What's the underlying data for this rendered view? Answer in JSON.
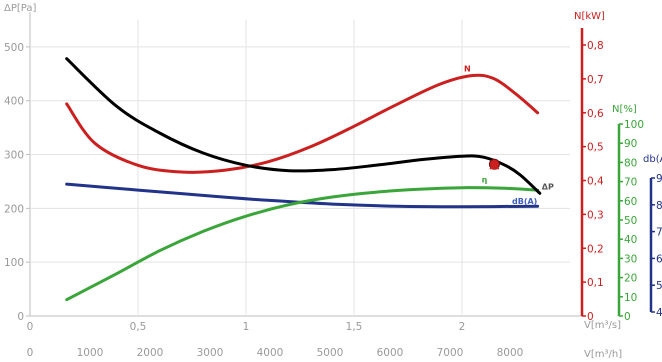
{
  "chart_data": {
    "type": "line",
    "x_axis": {
      "label": "V[m³/s]",
      "ticks": [
        {
          "value": 0,
          "label": "0"
        },
        {
          "value": 0.5,
          "label": "0,5"
        },
        {
          "value": 1,
          "label": "1"
        },
        {
          "value": 1.5,
          "label": "1,5"
        },
        {
          "value": 2,
          "label": "2"
        }
      ],
      "range": [
        0,
        2.5
      ]
    },
    "x2_axis": {
      "label": "V[m³/h]",
      "ticks": [
        "0",
        "1000",
        "2000",
        "3000",
        "4000",
        "5000",
        "6000",
        "7000",
        "8000"
      ],
      "step": 1000
    },
    "y_axes": {
      "pressure": {
        "label": "ΔP[Pa]",
        "ticks": [
          "0",
          "100",
          "200",
          "300",
          "400",
          "500"
        ],
        "range": [
          0,
          550
        ],
        "color": "#9a9a9a"
      },
      "power": {
        "label": "N[kW]",
        "ticks": [
          "0",
          "0,1",
          "0,2",
          "0,3",
          "0,4",
          "0,5",
          "0,6",
          "0,7",
          "0,8"
        ],
        "range": [
          0,
          0.8
        ],
        "color": "#cc1f1f"
      },
      "efficiency": {
        "label": "N[%]",
        "ticks": [
          "0",
          "10",
          "20",
          "30",
          "40",
          "50",
          "60",
          "70",
          "80",
          "90",
          "100"
        ],
        "range": [
          0,
          100
        ],
        "color": "#3aa63a"
      },
      "sound": {
        "label": "db(A)",
        "ticks": [
          "4",
          "5",
          "6",
          "7",
          "8",
          "9"
        ],
        "color": "#22338a"
      }
    },
    "series": [
      {
        "name": "ΔP",
        "axis": "pressure",
        "color": "#000000",
        "x": [
          0.17,
          0.4,
          0.6,
          0.8,
          1.0,
          1.2,
          1.4,
          1.6,
          1.8,
          2.0,
          2.1,
          2.2,
          2.27,
          2.36
        ],
        "y": [
          478,
          390,
          340,
          303,
          280,
          270,
          272,
          280,
          290,
          297,
          295,
          280,
          262,
          228
        ]
      },
      {
        "name": "N",
        "axis": "power",
        "color": "#cc1f1f",
        "x": [
          0.17,
          0.3,
          0.5,
          0.7,
          0.9,
          1.1,
          1.3,
          1.5,
          1.7,
          1.9,
          2.05,
          2.15,
          2.25,
          2.35
        ],
        "y": [
          0.626,
          0.51,
          0.445,
          0.425,
          0.43,
          0.455,
          0.5,
          0.56,
          0.625,
          0.685,
          0.71,
          0.7,
          0.655,
          0.6
        ]
      },
      {
        "name": "η",
        "axis": "efficiency",
        "color": "#3aa63a",
        "x": [
          0.17,
          0.4,
          0.6,
          0.8,
          1.0,
          1.2,
          1.4,
          1.6,
          1.8,
          2.0,
          2.2,
          2.35
        ],
        "y": [
          8.5,
          22,
          34,
          44,
          52,
          58,
          62,
          64.5,
          66,
          66.8,
          66.5,
          65.5
        ]
      },
      {
        "name": "dB(A)",
        "axis": "pressure",
        "color": "#22338a",
        "x": [
          0.17,
          0.5,
          0.8,
          1.1,
          1.4,
          1.7,
          2.0,
          2.35
        ],
        "y": [
          245,
          234,
          224,
          215,
          208,
          204,
          203,
          204
        ]
      }
    ],
    "operating_point": {
      "x": 2.15,
      "y": 282,
      "color": "#cc1f1f"
    },
    "grid": true
  }
}
